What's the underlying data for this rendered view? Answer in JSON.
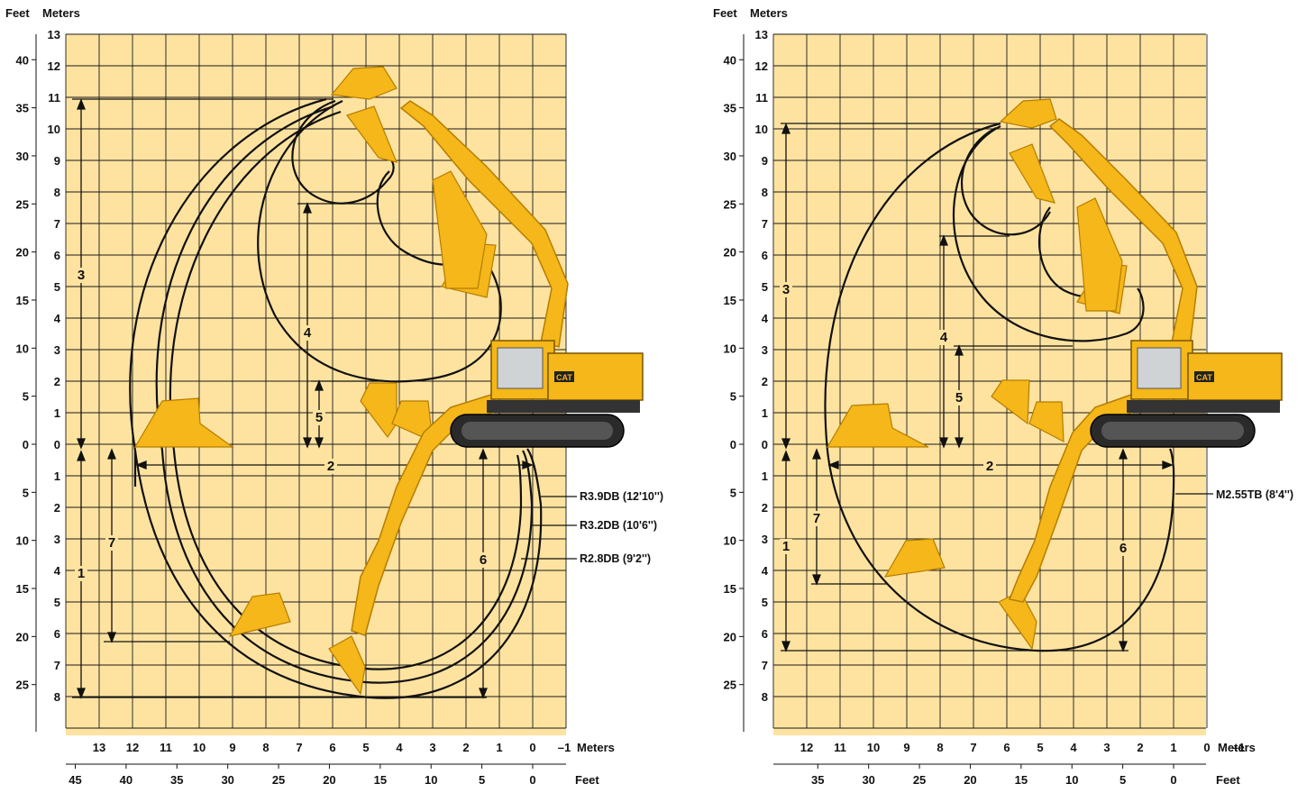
{
  "colors": {
    "background": "#fee3a0",
    "grid": "#1a1a1a",
    "curve": "#111111",
    "machine_yellow": "#f5b719",
    "machine_outline": "#b57d00",
    "undercarriage": "#2a2a2a"
  },
  "axis_titles": {
    "feet": "Feet",
    "meters": "Meters"
  },
  "left_chart": {
    "meters_vertical_ticks": [
      "13",
      "12",
      "11",
      "10",
      "9",
      "8",
      "7",
      "6",
      "5",
      "4",
      "3",
      "2",
      "1",
      "0",
      "1",
      "2",
      "3",
      "4",
      "5",
      "6",
      "7",
      "8"
    ],
    "feet_vertical_ticks": [
      "40",
      "35",
      "30",
      "25",
      "20",
      "15",
      "10",
      "5",
      "0",
      "5",
      "10",
      "15",
      "20",
      "25"
    ],
    "meters_horizontal_ticks": [
      "13",
      "12",
      "11",
      "10",
      "9",
      "8",
      "7",
      "6",
      "5",
      "4",
      "3",
      "2",
      "1",
      "0",
      "–1"
    ],
    "feet_horizontal_ticks": [
      "45",
      "40",
      "35",
      "30",
      "25",
      "20",
      "15",
      "10",
      "5",
      "0"
    ],
    "dimension_labels": [
      "1",
      "2",
      "3",
      "4",
      "5",
      "6",
      "7"
    ],
    "stick_labels": [
      "R3.9DB (12'10'')",
      "R3.2DB (10'6'')",
      "R2.8DB (9'2'')"
    ],
    "brand": "CAT"
  },
  "right_chart": {
    "meters_vertical_ticks": [
      "13",
      "12",
      "11",
      "10",
      "9",
      "8",
      "7",
      "6",
      "5",
      "4",
      "3",
      "2",
      "1",
      "0",
      "1",
      "2",
      "3",
      "4",
      "5",
      "6",
      "7",
      "8"
    ],
    "feet_vertical_ticks": [
      "40",
      "35",
      "30",
      "25",
      "20",
      "15",
      "10",
      "5",
      "0",
      "5",
      "10",
      "15",
      "20",
      "25"
    ],
    "meters_horizontal_ticks": [
      "12",
      "11",
      "10",
      "9",
      "8",
      "7",
      "6",
      "5",
      "4",
      "3",
      "2",
      "1",
      "0",
      "–1"
    ],
    "feet_horizontal_ticks": [
      "35",
      "30",
      "25",
      "20",
      "15",
      "10",
      "5",
      "0"
    ],
    "dimension_labels": [
      "1",
      "2",
      "3",
      "4",
      "5",
      "6",
      "7"
    ],
    "stick_labels": [
      "M2.55TB (8'4'')"
    ],
    "brand": "CAT"
  }
}
